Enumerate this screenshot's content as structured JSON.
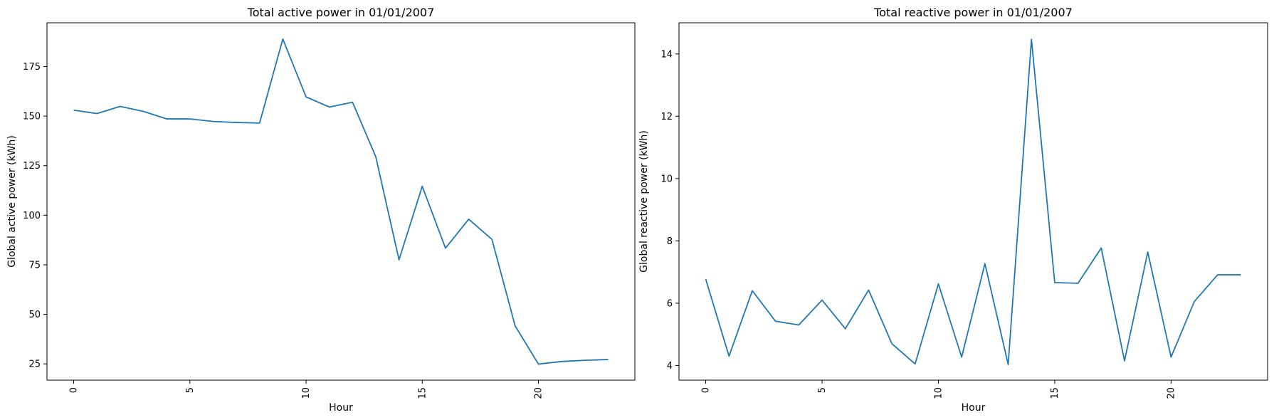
{
  "chart_data": [
    {
      "type": "line",
      "title": "Total active power in 01/01/2007",
      "xlabel": "Hour",
      "ylabel": "Global active power (kWh)",
      "xlim": [
        -1.15,
        24.15
      ],
      "ylim": [
        16.8,
        197.1
      ],
      "xticks": [
        0,
        5,
        10,
        15,
        20
      ],
      "yticks": [
        25,
        50,
        75,
        100,
        125,
        150,
        175
      ],
      "line_color": "#1f77b4",
      "grid": false,
      "x": [
        0,
        1,
        2,
        3,
        4,
        5,
        6,
        7,
        8,
        9,
        10,
        11,
        12,
        13,
        14,
        15,
        16,
        17,
        18,
        19,
        20,
        21,
        22,
        23
      ],
      "values": [
        153.0,
        151.3,
        154.9,
        152.4,
        148.6,
        148.6,
        147.3,
        146.8,
        146.5,
        188.9,
        159.7,
        154.6,
        157.0,
        129.5,
        77.5,
        114.6,
        83.4,
        98.0,
        87.8,
        44.1,
        24.9,
        26.2,
        26.8,
        27.2
      ]
    },
    {
      "type": "line",
      "title": "Total reactive power in 01/01/2007",
      "xlabel": "Hour",
      "ylabel": "Global  reactive power (kWh)",
      "xlim": [
        -1.15,
        24.15
      ],
      "ylim": [
        3.53,
        15.0
      ],
      "xticks": [
        0,
        5,
        10,
        15,
        20
      ],
      "yticks": [
        4,
        6,
        8,
        10,
        12,
        14
      ],
      "line_color": "#1f77b4",
      "grid": false,
      "x": [
        0,
        1,
        2,
        3,
        4,
        5,
        6,
        7,
        8,
        9,
        10,
        11,
        12,
        13,
        14,
        15,
        16,
        17,
        18,
        19,
        20,
        21,
        22,
        23
      ],
      "values": [
        6.77,
        4.3,
        6.4,
        5.42,
        5.3,
        6.1,
        5.18,
        6.42,
        4.7,
        4.05,
        6.62,
        4.27,
        7.27,
        4.03,
        14.47,
        6.66,
        6.64,
        7.77,
        4.15,
        7.64,
        4.27,
        6.05,
        6.91,
        6.91
      ]
    }
  ]
}
